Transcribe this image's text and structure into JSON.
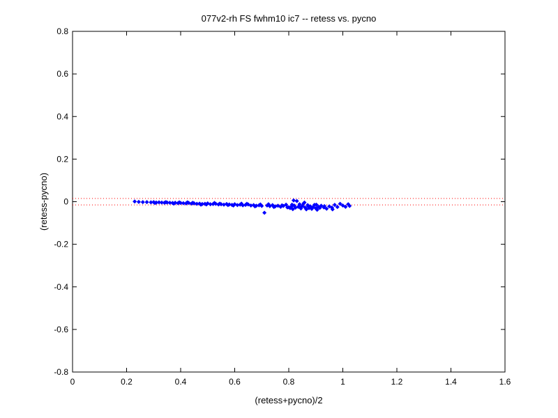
{
  "chart_data": {
    "type": "scatter",
    "title": "077v2-rh FS fwhm10 ic7 -- retess vs. pycno",
    "xlabel": "(retess+pycno)/2",
    "ylabel": "(retess-pycno)",
    "xlim": [
      0,
      1.6
    ],
    "ylim": [
      -0.8,
      0.8
    ],
    "xticks": [
      0,
      0.2,
      0.4,
      0.6,
      0.8,
      1,
      1.2,
      1.4,
      1.6
    ],
    "xtick_labels": [
      "0",
      "0.2",
      "0.4",
      "0.6",
      "0.8",
      "1",
      "1.2",
      "1.4",
      "1.6"
    ],
    "yticks": [
      -0.8,
      -0.6,
      -0.4,
      -0.2,
      0,
      0.2,
      0.4,
      0.6,
      0.8
    ],
    "ytick_labels": [
      "-0.8",
      "-0.6",
      "-0.4",
      "-0.2",
      "0",
      "0.2",
      "0.4",
      "0.6",
      "0.8"
    ],
    "grid": false,
    "legend": "none",
    "point_color": "#0000ff",
    "reference_lines": [
      {
        "y": 0.015,
        "style": "dotted",
        "color": "#ff0000"
      },
      {
        "y": -0.015,
        "style": "dotted",
        "color": "#ff0000"
      }
    ],
    "series": [
      {
        "points": [
          [
            0.23,
            0.001
          ],
          [
            0.245,
            -0.001
          ],
          [
            0.26,
            -0.002
          ],
          [
            0.275,
            -0.002
          ],
          [
            0.29,
            -0.003
          ],
          [
            0.3,
            -0.002
          ],
          [
            0.31,
            -0.004
          ],
          [
            0.32,
            -0.003
          ],
          [
            0.33,
            -0.004
          ],
          [
            0.34,
            -0.005
          ],
          [
            0.35,
            -0.004
          ],
          [
            0.36,
            -0.005
          ],
          [
            0.37,
            -0.006
          ],
          [
            0.38,
            -0.005
          ],
          [
            0.39,
            -0.007
          ],
          [
            0.4,
            -0.006
          ],
          [
            0.41,
            -0.007
          ],
          [
            0.42,
            -0.008
          ],
          [
            0.43,
            -0.006
          ],
          [
            0.44,
            -0.009
          ],
          [
            0.45,
            -0.008
          ],
          [
            0.46,
            -0.01
          ],
          [
            0.47,
            -0.009
          ],
          [
            0.48,
            -0.011
          ],
          [
            0.49,
            -0.01
          ],
          [
            0.5,
            -0.008
          ],
          [
            0.51,
            -0.012
          ],
          [
            0.52,
            -0.011
          ],
          [
            0.53,
            -0.01
          ],
          [
            0.54,
            -0.013
          ],
          [
            0.55,
            -0.012
          ],
          [
            0.56,
            -0.014
          ],
          [
            0.57,
            -0.011
          ],
          [
            0.58,
            -0.013
          ],
          [
            0.59,
            -0.015
          ],
          [
            0.6,
            -0.012
          ],
          [
            0.61,
            -0.016
          ],
          [
            0.62,
            -0.014
          ],
          [
            0.63,
            -0.017
          ],
          [
            0.64,
            -0.015
          ],
          [
            0.65,
            -0.013
          ],
          [
            0.66,
            -0.018
          ],
          [
            0.67,
            -0.016
          ],
          [
            0.68,
            -0.019
          ],
          [
            0.69,
            -0.017
          ],
          [
            0.7,
            -0.02
          ],
          [
            0.71,
            -0.052
          ],
          [
            0.72,
            -0.018
          ],
          [
            0.73,
            -0.021
          ],
          [
            0.74,
            -0.016
          ],
          [
            0.75,
            -0.022
          ],
          [
            0.76,
            -0.019
          ],
          [
            0.77,
            -0.024
          ],
          [
            0.78,
            -0.02
          ],
          [
            0.79,
            -0.014
          ],
          [
            0.8,
            -0.026
          ],
          [
            0.805,
            -0.03
          ],
          [
            0.81,
            -0.022
          ],
          [
            0.815,
            -0.035
          ],
          [
            0.82,
            -0.018
          ],
          [
            0.825,
            -0.028
          ],
          [
            0.83,
            0.003
          ],
          [
            0.835,
            -0.024
          ],
          [
            0.84,
            -0.012
          ],
          [
            0.845,
            -0.032
          ],
          [
            0.85,
            -0.02
          ],
          [
            0.855,
            -0.008
          ],
          [
            0.86,
            -0.027
          ],
          [
            0.865,
            -0.036
          ],
          [
            0.87,
            -0.016
          ],
          [
            0.875,
            -0.03
          ],
          [
            0.88,
            -0.022
          ],
          [
            0.885,
            -0.034
          ],
          [
            0.89,
            -0.025
          ],
          [
            0.895,
            -0.015
          ],
          [
            0.9,
            -0.031
          ],
          [
            0.905,
            -0.038
          ],
          [
            0.91,
            -0.024
          ],
          [
            0.915,
            -0.029
          ],
          [
            0.92,
            -0.019
          ],
          [
            0.93,
            -0.027
          ],
          [
            0.94,
            -0.033
          ],
          [
            0.95,
            -0.022
          ],
          [
            0.96,
            -0.028
          ],
          [
            0.97,
            -0.015
          ],
          [
            0.98,
            -0.025
          ],
          [
            0.99,
            -0.01
          ],
          [
            1.0,
            -0.018
          ],
          [
            1.01,
            -0.024
          ],
          [
            1.02,
            -0.012
          ],
          [
            1.025,
            -0.02
          ],
          [
            0.305,
            -0.006
          ],
          [
            0.345,
            -0.002
          ],
          [
            0.395,
            -0.003
          ],
          [
            0.445,
            -0.005
          ],
          [
            0.495,
            -0.013
          ],
          [
            0.545,
            -0.009
          ],
          [
            0.595,
            -0.018
          ],
          [
            0.645,
            -0.01
          ],
          [
            0.695,
            -0.013
          ],
          [
            0.745,
            -0.025
          ],
          [
            0.795,
            -0.027
          ],
          [
            0.812,
            -0.014
          ],
          [
            0.842,
            -0.027
          ],
          [
            0.872,
            -0.022
          ],
          [
            0.902,
            -0.014
          ],
          [
            0.932,
            -0.021
          ],
          [
            0.962,
            -0.036
          ],
          [
            0.375,
            -0.009
          ],
          [
            0.425,
            -0.003
          ],
          [
            0.475,
            -0.014
          ],
          [
            0.525,
            -0.006
          ],
          [
            0.575,
            -0.016
          ],
          [
            0.625,
            -0.009
          ],
          [
            0.675,
            -0.022
          ],
          [
            0.725,
            -0.012
          ],
          [
            0.775,
            -0.017
          ],
          [
            0.818,
            0.006
          ],
          [
            0.858,
            -0.004
          ]
        ]
      }
    ]
  }
}
